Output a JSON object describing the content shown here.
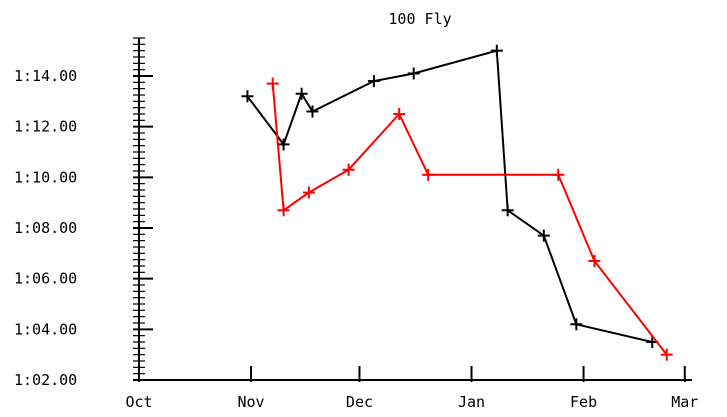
{
  "chart_data": {
    "type": "line",
    "title": "100 Fly",
    "xlabel": "",
    "ylabel": "",
    "x_ticks": [
      "Oct",
      "Nov",
      "Dec",
      "Jan",
      "Feb",
      "Mar"
    ],
    "y_ticks": [
      "1:02.00",
      "1:04.00",
      "1:06.00",
      "1:08.00",
      "1:10.00",
      "1:12.00",
      "1:14.00"
    ],
    "x_tick_values": [
      0,
      31,
      61,
      92,
      123,
      151
    ],
    "y_tick_values": [
      62,
      64,
      66,
      68,
      70,
      72,
      74
    ],
    "xlim": [
      0,
      153
    ],
    "ylim": [
      62,
      75.5
    ],
    "x_unit": "days from Oct 1",
    "y_unit": "seconds",
    "grid": false,
    "series": [
      {
        "color": "#000000",
        "x": [
          30,
          40,
          45,
          48,
          65,
          76,
          99,
          102,
          112,
          121,
          142
        ],
        "y": [
          73.2,
          71.3,
          73.3,
          72.6,
          73.8,
          74.1,
          75.0,
          68.7,
          67.7,
          64.2,
          63.5
        ]
      },
      {
        "color": "#ff0000",
        "x": [
          37,
          40,
          47,
          58,
          72,
          80,
          116,
          126,
          146
        ],
        "y": [
          73.7,
          68.7,
          69.4,
          70.3,
          72.5,
          70.1,
          70.1,
          66.7,
          63.0
        ]
      }
    ]
  }
}
